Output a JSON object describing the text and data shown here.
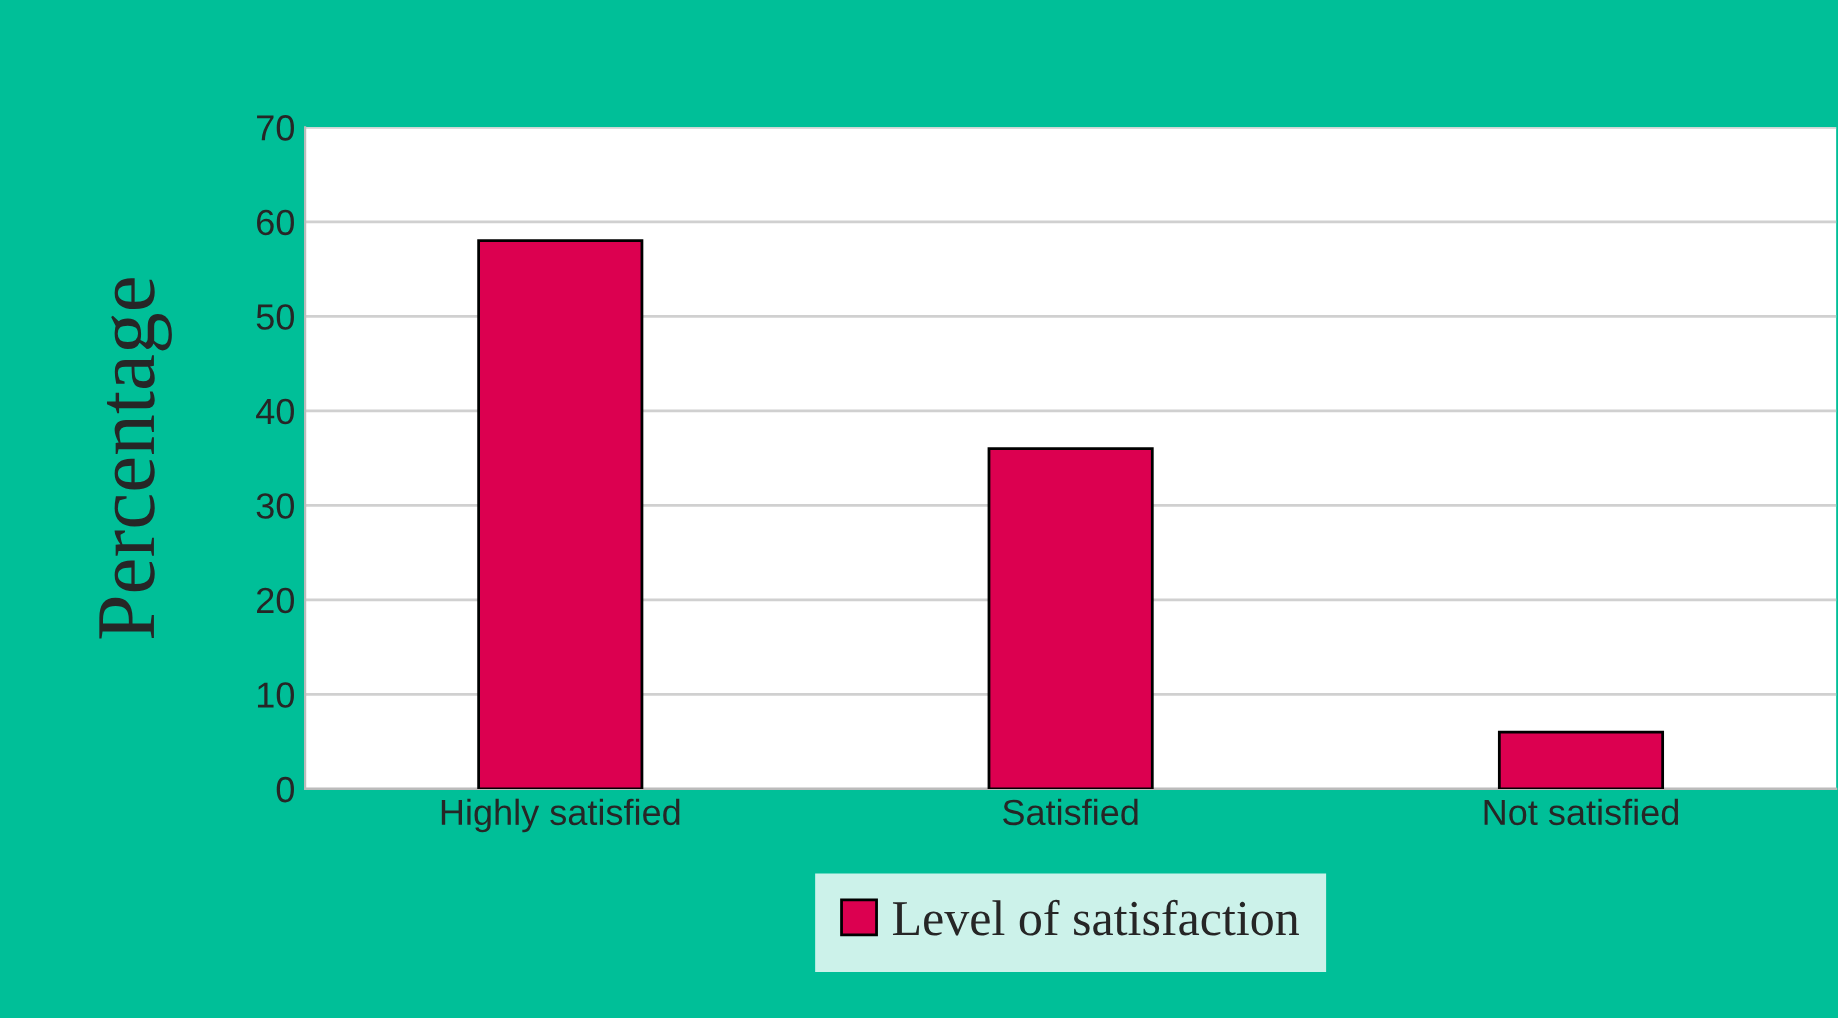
{
  "chart_data": {
    "type": "bar",
    "ylabel": "Percentage",
    "categories": [
      "Highly satisfied",
      "Satisfied",
      "Not satisfied"
    ],
    "series": [
      {
        "name": "Level of satisfaction",
        "color": "#dc0050",
        "values": [
          58,
          36,
          6
        ]
      }
    ],
    "ylim": [
      0,
      70
    ],
    "yticks": [
      0,
      10,
      20,
      30,
      40,
      50,
      60,
      70
    ],
    "grid": "y",
    "legend": "bottom"
  }
}
